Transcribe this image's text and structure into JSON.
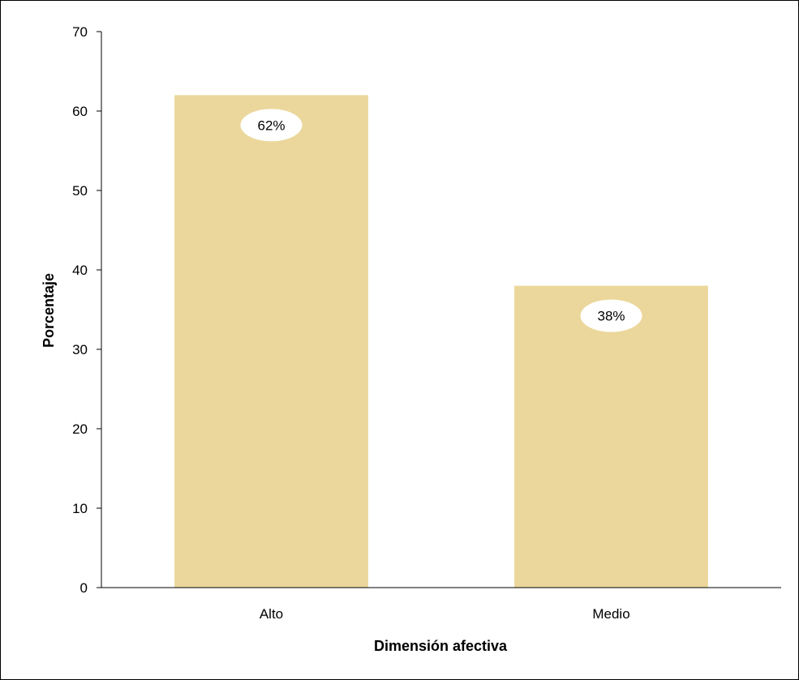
{
  "chart_data": {
    "type": "bar",
    "categories": [
      "Alto",
      "Medio"
    ],
    "values": [
      62,
      38
    ],
    "data_labels": [
      "62%",
      "38%"
    ],
    "title": "",
    "xlabel": "Dimensión afectiva",
    "ylabel": "Porcentaje",
    "ylim": [
      0,
      70
    ],
    "yticks": [
      0,
      10,
      20,
      30,
      40,
      50,
      60,
      70
    ],
    "grid": false,
    "legend": "none",
    "colors": {
      "bar": "#ebd79b",
      "label_bubble": "#ffffff",
      "axis": "#000000"
    }
  }
}
